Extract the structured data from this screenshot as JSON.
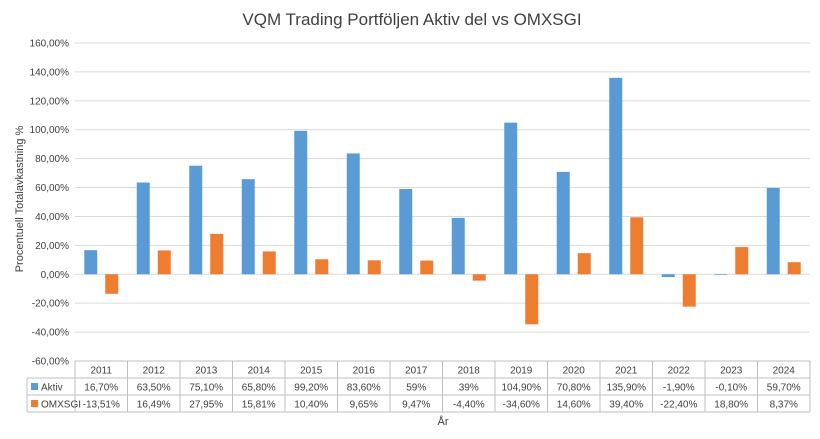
{
  "chart_data": {
    "type": "bar",
    "title": "VQM Trading Portföljen Aktiv del vs OMXSGI",
    "xlabel": "År",
    "ylabel": "Procentuell Totalavkastning %",
    "ylim": [
      -60,
      160
    ],
    "ytick_step": 20,
    "ytick_labels": [
      "160,00%",
      "140,00%",
      "120,00%",
      "100,00%",
      "80,00%",
      "60,00%",
      "40,00%",
      "20,00%",
      "0,00%",
      "-20,00%",
      "-40,00%",
      "-60,00%"
    ],
    "grid": true,
    "categories": [
      "2011",
      "2012",
      "2013",
      "2014",
      "2015",
      "2016",
      "2017",
      "2018",
      "2019",
      "2020",
      "2021",
      "2022",
      "2023",
      "2024"
    ],
    "series": [
      {
        "name": "Aktiv",
        "color": "#5b9bd5",
        "values": [
          16.7,
          63.5,
          75.1,
          65.8,
          99.2,
          83.6,
          59,
          39,
          104.9,
          70.8,
          135.9,
          -1.9,
          -0.1,
          59.7
        ],
        "labels": [
          "16,70%",
          "63,50%",
          "75,10%",
          "65,80%",
          "99,20%",
          "83,60%",
          "59%",
          "39%",
          "104,90%",
          "70,80%",
          "135,90%",
          "-1,90%",
          "-0,10%",
          "59,70%"
        ]
      },
      {
        "name": "OMXSGI",
        "color": "#ed7d31",
        "values": [
          -13.51,
          16.49,
          27.95,
          15.81,
          10.4,
          9.65,
          9.47,
          -4.4,
          -34.6,
          14.6,
          39.4,
          -22.4,
          18.8,
          8.37
        ],
        "labels": [
          "-13,51%",
          "16,49%",
          "27,95%",
          "15,81%",
          "10,40%",
          "9,65%",
          "9,47%",
          "-4,40%",
          "-34,60%",
          "14,60%",
          "39,40%",
          "-22,40%",
          "18,80%",
          "8,37%"
        ]
      }
    ]
  }
}
